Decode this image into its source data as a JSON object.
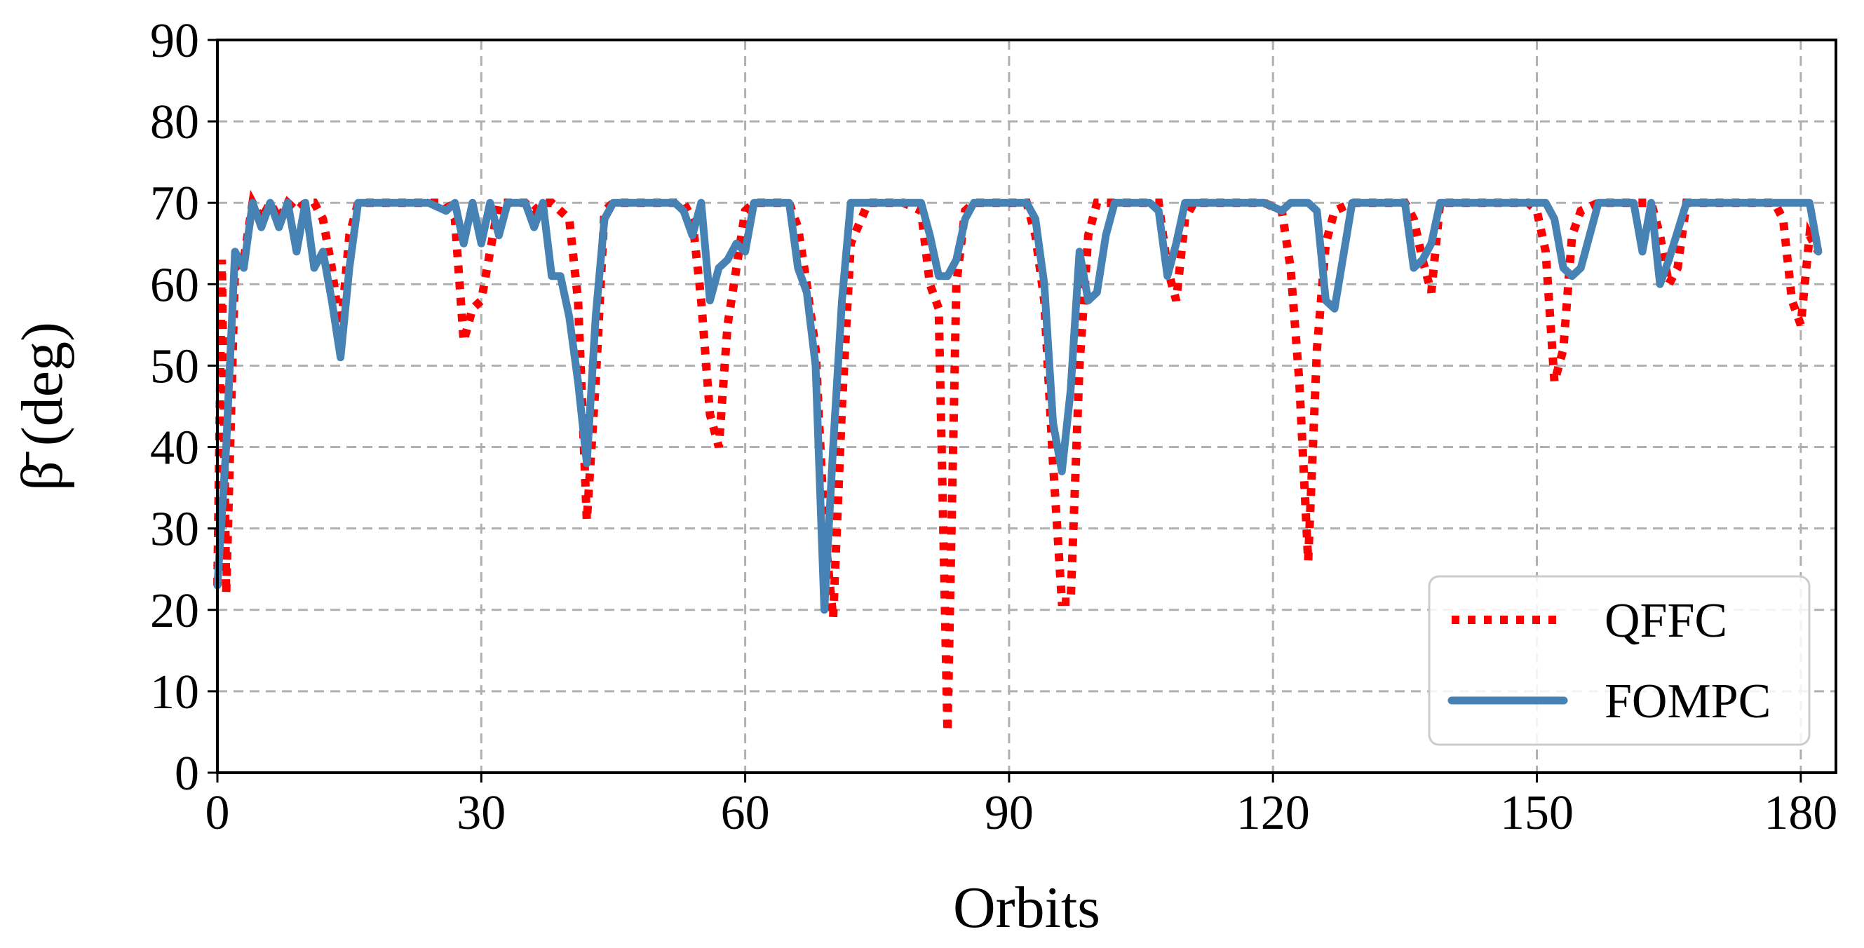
{
  "chart_data": {
    "type": "line",
    "xlabel": "Orbits",
    "ylabel": "β̄ (deg)",
    "xlim": [
      0,
      184
    ],
    "ylim": [
      0,
      90
    ],
    "xticks": [
      0,
      30,
      60,
      90,
      120,
      150,
      180
    ],
    "yticks": [
      0,
      10,
      20,
      30,
      40,
      50,
      60,
      70,
      80,
      90
    ],
    "grid": true,
    "legend_position": "bottom-right",
    "series": [
      {
        "name": "QFFC",
        "style": "dotted",
        "color": "#ff0000",
        "x": [
          0,
          0.5,
          1,
          2,
          3,
          4,
          5,
          6,
          7,
          8,
          9,
          10,
          11,
          12,
          13,
          14,
          15,
          16,
          18,
          20,
          22,
          24,
          26,
          27,
          28,
          29,
          30,
          31,
          32,
          33,
          34,
          35,
          36,
          37,
          38,
          39,
          40,
          41,
          42,
          43,
          44,
          45,
          47,
          50,
          53,
          54,
          55,
          56,
          57,
          58,
          59,
          60,
          61,
          63,
          65,
          66,
          67,
          68,
          69,
          70,
          71,
          72,
          74,
          76,
          78,
          80,
          81,
          82,
          83,
          84,
          85,
          86,
          88,
          90,
          92,
          93,
          94,
          95,
          96,
          97,
          98,
          99,
          100,
          102,
          104,
          106,
          107,
          108,
          109,
          110,
          111,
          113,
          115,
          117,
          119,
          121,
          122,
          123,
          124,
          125,
          126,
          127,
          129,
          131,
          133,
          135,
          136,
          137,
          138,
          139,
          141,
          143,
          145,
          147,
          149,
          150,
          151,
          152,
          153,
          154,
          155,
          157,
          159,
          161,
          163,
          164,
          165,
          166,
          167,
          169,
          171,
          173,
          175,
          177,
          178,
          179,
          180,
          181,
          182
        ],
        "y": [
          23,
          63,
          22,
          62,
          63,
          70,
          68,
          70,
          68,
          70,
          69,
          70,
          70,
          68,
          62,
          54,
          66,
          70,
          70,
          70,
          70,
          70,
          70,
          68,
          53,
          57,
          58,
          64,
          70,
          70,
          70,
          70,
          69,
          70,
          70,
          69,
          68,
          58,
          31,
          48,
          69,
          70,
          70,
          70,
          70,
          68,
          58,
          44,
          40,
          55,
          62,
          69,
          70,
          70,
          70,
          67,
          60,
          52,
          30,
          19,
          45,
          65,
          70,
          70,
          70,
          69,
          60,
          57,
          5,
          60,
          69,
          70,
          70,
          70,
          70,
          66,
          58,
          38,
          21,
          21,
          50,
          66,
          70,
          70,
          70,
          70,
          70,
          62,
          58,
          68,
          70,
          70,
          70,
          70,
          70,
          69,
          62,
          48,
          26,
          52,
          65,
          69,
          70,
          70,
          70,
          70,
          68,
          63,
          59,
          70,
          70,
          70,
          70,
          70,
          70,
          69,
          64,
          48,
          52,
          66,
          69,
          70,
          70,
          70,
          70,
          66,
          60,
          62,
          70,
          70,
          70,
          70,
          70,
          70,
          68,
          58,
          55,
          66,
          64
        ]
      },
      {
        "name": "FOMPC",
        "style": "solid",
        "color": "#4682b4",
        "x": [
          0,
          1,
          2,
          3,
          4,
          5,
          6,
          7,
          8,
          9,
          10,
          11,
          12,
          13,
          14,
          15,
          16,
          18,
          20,
          22,
          24,
          26,
          27,
          28,
          29,
          30,
          31,
          32,
          33,
          34,
          35,
          36,
          37,
          38,
          39,
          40,
          41,
          42,
          43,
          44,
          45,
          47,
          50,
          52,
          53,
          54,
          55,
          56,
          57,
          58,
          59,
          60,
          61,
          63,
          65,
          66,
          67,
          68,
          69,
          70,
          71,
          72,
          74,
          76,
          78,
          80,
          81,
          82,
          83,
          84,
          85,
          86,
          88,
          90,
          92,
          93,
          94,
          95,
          96,
          97,
          98,
          99,
          100,
          101,
          102,
          104,
          106,
          107,
          108,
          109,
          110,
          111,
          113,
          115,
          117,
          119,
          121,
          122,
          123,
          124,
          125,
          126,
          127,
          129,
          131,
          133,
          135,
          136,
          137,
          138,
          139,
          141,
          143,
          145,
          147,
          149,
          151,
          152,
          153,
          154,
          155,
          157,
          159,
          161,
          162,
          163,
          164,
          165,
          167,
          169,
          171,
          173,
          175,
          177,
          178,
          180,
          181,
          182
        ],
        "y": [
          23,
          40,
          64,
          62,
          70,
          67,
          70,
          67,
          70,
          64,
          70,
          62,
          64,
          58,
          51,
          62,
          70,
          70,
          70,
          70,
          70,
          69,
          70,
          65,
          70,
          65,
          70,
          66,
          70,
          70,
          70,
          67,
          70,
          61,
          61,
          56,
          48,
          38,
          56,
          68,
          70,
          70,
          70,
          70,
          69,
          66,
          70,
          58,
          62,
          63,
          65,
          64,
          70,
          70,
          70,
          62,
          59,
          50,
          20,
          40,
          58,
          70,
          70,
          70,
          70,
          70,
          66,
          61,
          61,
          63,
          68,
          70,
          70,
          70,
          70,
          68,
          60,
          43,
          37,
          47,
          64,
          58,
          59,
          66,
          70,
          70,
          70,
          69,
          61,
          65,
          70,
          70,
          70,
          70,
          70,
          70,
          69,
          70,
          70,
          70,
          69,
          58,
          57,
          70,
          70,
          70,
          70,
          62,
          63,
          65,
          70,
          70,
          70,
          70,
          70,
          70,
          70,
          68,
          62,
          61,
          62,
          70,
          70,
          70,
          64,
          70,
          60,
          63,
          70,
          70,
          70,
          70,
          70,
          70,
          70,
          70,
          70,
          64
        ]
      }
    ]
  }
}
